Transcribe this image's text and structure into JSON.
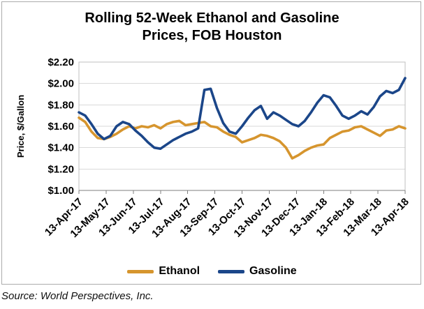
{
  "title": {
    "line1": "Rolling 52-Week Ethanol and Gasoline",
    "line2": "Prices, FOB Houston"
  },
  "source": "Source: World Perspectives, Inc.",
  "chart_data": {
    "type": "line",
    "title": "Rolling 52-Week Ethanol and Gasoline Prices, FOB Houston",
    "xlabel": "",
    "ylabel": "Price, $/Gallon",
    "ylim": [
      1.0,
      2.2
    ],
    "grid": "horizontal",
    "legend_position": "bottom",
    "y_ticks": [
      {
        "value": 1.0,
        "label": "$1.00"
      },
      {
        "value": 1.2,
        "label": "$1.20"
      },
      {
        "value": 1.4,
        "label": "$1.40"
      },
      {
        "value": 1.6,
        "label": "$1.60"
      },
      {
        "value": 1.8,
        "label": "$1.80"
      },
      {
        "value": 2.0,
        "label": "$2.00"
      },
      {
        "value": 2.2,
        "label": "$2.20"
      }
    ],
    "x_tick_labels": [
      "13-Apr-17",
      "13-May-17",
      "13-Jun-17",
      "13-Jul-17",
      "13-Aug-17",
      "13-Sep-17",
      "13-Oct-17",
      "13-Nov-17",
      "13-Dec-17",
      "13-Jan-18",
      "13-Feb-18",
      "13-Mar-18",
      "13-Apr-18"
    ],
    "x_units": "weekly observations, 13-Apr-17 through 13-Apr-18",
    "series": [
      {
        "name": "Ethanol",
        "color": "#d6952e",
        "values": [
          1.68,
          1.64,
          1.55,
          1.49,
          1.48,
          1.5,
          1.53,
          1.57,
          1.6,
          1.58,
          1.6,
          1.59,
          1.61,
          1.58,
          1.62,
          1.64,
          1.65,
          1.61,
          1.62,
          1.63,
          1.64,
          1.6,
          1.59,
          1.55,
          1.52,
          1.5,
          1.45,
          1.47,
          1.49,
          1.52,
          1.51,
          1.49,
          1.46,
          1.4,
          1.3,
          1.33,
          1.37,
          1.4,
          1.42,
          1.43,
          1.49,
          1.52,
          1.55,
          1.56,
          1.59,
          1.6,
          1.57,
          1.54,
          1.51,
          1.56,
          1.57,
          1.6,
          1.58
        ]
      },
      {
        "name": "Gasoline",
        "color": "#1b4689",
        "values": [
          1.73,
          1.7,
          1.62,
          1.53,
          1.48,
          1.51,
          1.6,
          1.64,
          1.62,
          1.56,
          1.51,
          1.45,
          1.4,
          1.39,
          1.43,
          1.47,
          1.5,
          1.53,
          1.55,
          1.58,
          1.94,
          1.95,
          1.77,
          1.63,
          1.55,
          1.53,
          1.6,
          1.68,
          1.75,
          1.79,
          1.67,
          1.73,
          1.7,
          1.66,
          1.62,
          1.6,
          1.65,
          1.73,
          1.82,
          1.89,
          1.87,
          1.79,
          1.7,
          1.67,
          1.7,
          1.74,
          1.71,
          1.78,
          1.88,
          1.93,
          1.91,
          1.94,
          2.05
        ]
      }
    ],
    "style": {
      "gridline_color": "#d9d9d9",
      "plot_border_color": "#bfbfbf",
      "axis_color": "#7f7f7f",
      "line_width": 3.6
    }
  }
}
